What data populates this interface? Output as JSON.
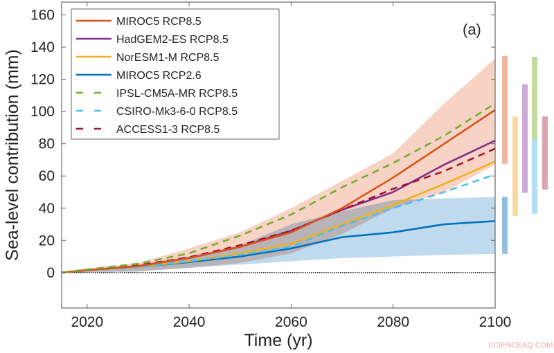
{
  "chart_data": {
    "type": "line",
    "panel_label": "(a)",
    "xlabel": "Time (yr)",
    "ylabel": "Sea-level contribution (mm)",
    "xlim": [
      2015,
      2100
    ],
    "ylim": [
      -22,
      168
    ],
    "xticks": [
      2020,
      2040,
      2060,
      2080,
      2100
    ],
    "yticks": [
      0,
      20,
      40,
      60,
      80,
      100,
      120,
      140,
      160
    ],
    "grid": false,
    "legend_position": "top-left",
    "zero_line": {
      "y": 0,
      "style": "dotted",
      "color": "#000000"
    },
    "x": [
      2015,
      2020,
      2030,
      2040,
      2050,
      2060,
      2070,
      2080,
      2090,
      2100
    ],
    "series": [
      {
        "name": "MIROC5 RCP8.5",
        "color": "#D95319",
        "dash": false,
        "values": [
          0,
          1.5,
          4,
          9,
          16,
          25,
          40,
          59,
          80,
          101
        ]
      },
      {
        "name": "HadGEM2-ES RCP8.5",
        "color": "#7E2F8E",
        "dash": false,
        "values": [
          0,
          1.5,
          4,
          9,
          16,
          26,
          39,
          50,
          67,
          82
        ]
      },
      {
        "name": "NorESM1-M RCP8.5",
        "color": "#EDB120",
        "dash": false,
        "values": [
          0,
          1.5,
          3.5,
          7,
          12,
          18,
          30,
          42,
          55,
          69
        ]
      },
      {
        "name": "MIROC5 RCP2.6",
        "color": "#0072BD",
        "dash": false,
        "values": [
          0,
          1.5,
          3.5,
          6.5,
          10,
          15,
          22,
          25,
          30,
          32
        ]
      },
      {
        "name": "IPSL-CM5A-MR RCP8.5",
        "color": "#77AC30",
        "dash": true,
        "values": [
          0,
          2,
          5.5,
          12,
          23,
          36,
          53,
          68,
          85,
          105
        ]
      },
      {
        "name": "CSIRO-Mk3-6-0 RCP8.5",
        "color": "#4DBEEE",
        "dash": true,
        "values": [
          0,
          1.5,
          3.5,
          7,
          11,
          16,
          29,
          40,
          50,
          61
        ]
      },
      {
        "name": "ACCESS1-3 RCP8.5",
        "color": "#A2142F",
        "dash": true,
        "values": [
          0,
          1.5,
          4.5,
          9.5,
          17,
          26,
          39,
          52,
          63,
          77
        ]
      }
    ],
    "bands": [
      {
        "of": "MIROC5 RCP8.5",
        "color": "#F0A88C",
        "lower": [
          0,
          0.5,
          1,
          3,
          6,
          12,
          24,
          40,
          50,
          67
        ],
        "upper": [
          0,
          2.5,
          6,
          15,
          25,
          40,
          57,
          74,
          105,
          133
        ]
      },
      {
        "of": "MIROC5 RCP2.6",
        "color": "#7FB3DC",
        "lower": [
          0,
          0,
          0.5,
          3,
          5,
          7,
          9,
          10,
          11,
          11.6
        ],
        "upper": [
          0,
          2,
          5,
          10,
          17,
          30,
          38,
          45,
          46,
          47
        ]
      }
    ],
    "range_bars_2100": [
      {
        "of": "MIROC5 RCP8.5",
        "color": "#F0A88C",
        "min": 67.5,
        "max": 134.6
      },
      {
        "of": "MIROC5 RCP2.6",
        "color": "#7FB3DC",
        "min": 11.6,
        "max": 47
      },
      {
        "of": "NorESM1-M RCP8.5",
        "color": "#F5D48E",
        "min": 35.3,
        "max": 96.8
      },
      {
        "of": "HadGEM2-ES RCP8.5",
        "color": "#C29BCF",
        "min": 49.5,
        "max": 117
      },
      {
        "of": "IPSL-CM5A-MR RCP8.5",
        "color": "#B5D38E",
        "min": 82.6,
        "max": 134
      },
      {
        "of": "CSIRO-Mk3-6-0 RCP8.5",
        "color": "#A6D8F2",
        "min": 36.6,
        "max": 82.6
      },
      {
        "of": "ACCESS1-3 RCP8.5",
        "color": "#D596A2",
        "min": 51.6,
        "max": 97
      }
    ]
  },
  "watermark": "SCIENCEAQ.COM"
}
